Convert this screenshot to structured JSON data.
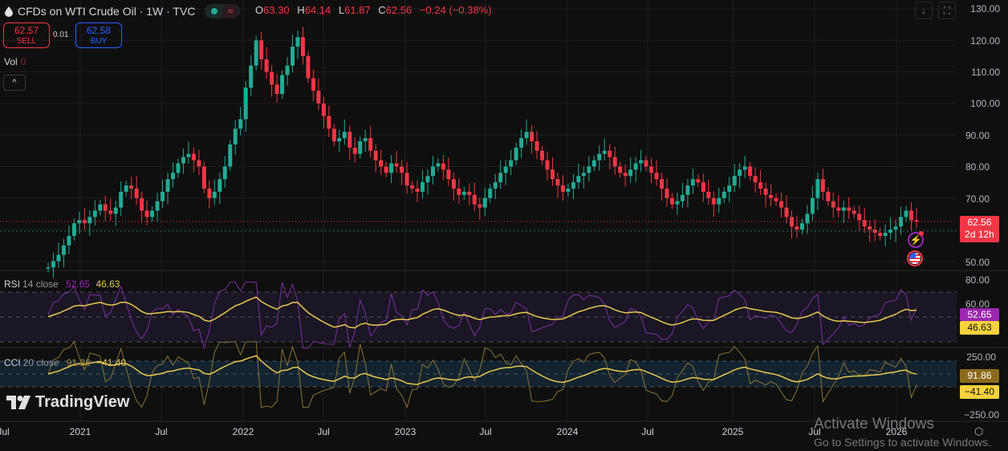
{
  "header": {
    "symbol_title": "CFDs on WTI Crude Oil · 1W · TVC",
    "market_status_icon": "market-open-dot",
    "delayed_icon": "approx-wave",
    "ohlc": {
      "o_label": "O",
      "o": "63.30",
      "h_label": "H",
      "h": "64.14",
      "l_label": "L",
      "l": "61.87",
      "c_label": "C",
      "c": "62.56",
      "change": "−0.24 (−0.38%)"
    }
  },
  "trade": {
    "sell_price": "62.57",
    "sell_label": "SELL",
    "spread": "0.01",
    "buy_price": "62.58",
    "buy_label": "BUY"
  },
  "volume": {
    "label": "Vol",
    "value": "0"
  },
  "collapse_icon": "^",
  "toolbar": {
    "scroll_icon": "↓",
    "fullscreen_icon": "⛶"
  },
  "price_axis": {
    "labels": [
      "130.00",
      "120.00",
      "110.00",
      "100.00",
      "90.00",
      "80.00",
      "70.00",
      "50.00"
    ],
    "current_price": "62.56",
    "countdown": "2d 12h"
  },
  "rsi": {
    "name": "RSI",
    "params": "14 close",
    "value": "52.65",
    "ma_value": "46.63",
    "axis_labels": [
      "80.00",
      "60.00"
    ]
  },
  "cci": {
    "name": "CCI",
    "params": "20 close",
    "value": "91.86",
    "ma_value": "−41.40",
    "axis_labels": [
      "250.00",
      "−250.00"
    ]
  },
  "time_axis": [
    "Jul",
    "2021",
    "Jul",
    "2022",
    "Jul",
    "2023",
    "Jul",
    "2024",
    "Jul",
    "2025",
    "Jul",
    "2026"
  ],
  "logo_text": "TradingView",
  "watermark": {
    "title": "Activate Windows",
    "subtitle": "Go to Settings to activate Windows."
  },
  "colors": {
    "up": "#22ab94",
    "down": "#f23645",
    "rsi": "#7e2fa3",
    "rsi_ma": "#e8c84a",
    "cci": "#8a7430",
    "cci_ma": "#e8c84a",
    "bg": "#0f0f0f"
  },
  "chart_data": {
    "type": "candlestick",
    "title": "CFDs on WTI Crude Oil · 1W · TVC",
    "ylim": [
      47,
      131
    ],
    "approx_closes": [
      48,
      50,
      52,
      55,
      58,
      62,
      63,
      62,
      64,
      66,
      68,
      66,
      65,
      67,
      72,
      74,
      73,
      70,
      66,
      64,
      66,
      69,
      72,
      76,
      78,
      81,
      83,
      84,
      82,
      80,
      73,
      70,
      72,
      76,
      80,
      87,
      92,
      95,
      105,
      112,
      120,
      114,
      110,
      106,
      103,
      109,
      112,
      118,
      121,
      115,
      108,
      104,
      100,
      96,
      92,
      88,
      89,
      91,
      86,
      84,
      88,
      89,
      85,
      82,
      80,
      78,
      81,
      80,
      78,
      74,
      73,
      72,
      75,
      77,
      80,
      81,
      79,
      76,
      73,
      71,
      72,
      71,
      68,
      67,
      70,
      73,
      75,
      78,
      80,
      82,
      86,
      89,
      91,
      88,
      85,
      82,
      79,
      76,
      74,
      72,
      73,
      75,
      77,
      78,
      80,
      82,
      84,
      85,
      83,
      80,
      78,
      77,
      79,
      81,
      82,
      80,
      78,
      76,
      73,
      70,
      68,
      69,
      71,
      74,
      76,
      75,
      72,
      70,
      68,
      70,
      72,
      74,
      77,
      79,
      80,
      77,
      75,
      73,
      71,
      70,
      69,
      67,
      64,
      61,
      60,
      62,
      65,
      70,
      76,
      72,
      69,
      67,
      66,
      67,
      66,
      65,
      63,
      61,
      60,
      59,
      58,
      59,
      60,
      61,
      64,
      66,
      63,
      62.56
    ]
  }
}
